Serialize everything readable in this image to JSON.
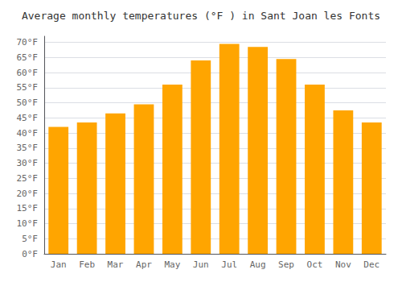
{
  "chart_data": {
    "type": "bar",
    "title": "Average monthly temperatures (°F ) in Sant Joan les Fonts",
    "categories": [
      "Jan",
      "Feb",
      "Mar",
      "Apr",
      "May",
      "Jun",
      "Jul",
      "Aug",
      "Sep",
      "Oct",
      "Nov",
      "Dec"
    ],
    "values": [
      42,
      43.5,
      46.5,
      49.5,
      56,
      64,
      69.5,
      68.5,
      64.5,
      56,
      47.5,
      43.5
    ],
    "color": "#FFA500",
    "ylim": [
      0,
      72
    ],
    "yticks": [
      {
        "value": 0,
        "label": "0°F"
      },
      {
        "value": 5,
        "label": "5°F"
      },
      {
        "value": 10,
        "label": "10°F"
      },
      {
        "value": 15,
        "label": "15°F"
      },
      {
        "value": 20,
        "label": "20°F"
      },
      {
        "value": 25,
        "label": "25°F"
      },
      {
        "value": 30,
        "label": "30°F"
      },
      {
        "value": 35,
        "label": "35°F"
      },
      {
        "value": 40,
        "label": "40°F"
      },
      {
        "value": 45,
        "label": "45°F"
      },
      {
        "value": 50,
        "label": "50°F"
      },
      {
        "value": 55,
        "label": "55°F"
      },
      {
        "value": 60,
        "label": "60°F"
      },
      {
        "value": 65,
        "label": "65°F"
      },
      {
        "value": 70,
        "label": "70°F"
      }
    ],
    "grid": true
  }
}
